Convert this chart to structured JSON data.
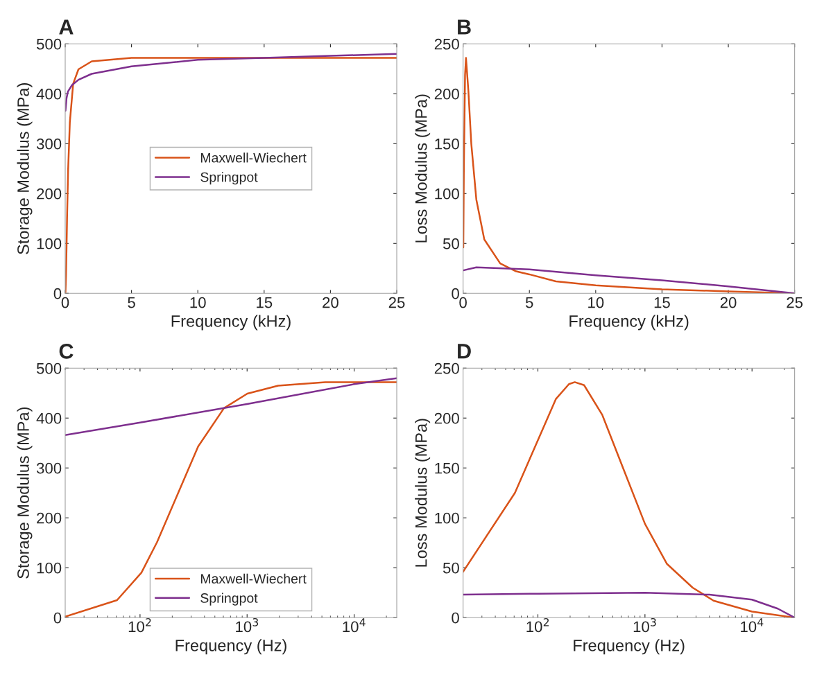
{
  "chart_data": [
    {
      "type": "line",
      "title": "A",
      "xlabel": "Frequency (kHz)",
      "ylabel": "Storage Modulus (MPa)",
      "xlim": [
        0,
        25
      ],
      "xticks": [
        0,
        5,
        10,
        15,
        20,
        25
      ],
      "ylim": [
        0,
        500
      ],
      "yticks": [
        0,
        100,
        200,
        300,
        400,
        500
      ],
      "grid": false,
      "legend": "center",
      "series": [
        {
          "name": "Maxwell-Wiechert",
          "color": "#d95319",
          "x": [
            0.02,
            0.06,
            0.1,
            0.14,
            0.22,
            0.35,
            0.6,
            1,
            2,
            5,
            25
          ],
          "values": [
            2,
            35,
            90,
            151,
            247,
            343,
            420,
            449,
            465,
            472,
            472
          ]
        },
        {
          "name": "Springpot",
          "color": "#7e2f8e",
          "x": [
            0.02,
            0.1,
            0.2,
            0.5,
            1,
            2,
            5,
            10,
            15,
            20,
            25
          ],
          "values": [
            366,
            391,
            404,
            417,
            428,
            440,
            455,
            468,
            472,
            476,
            480
          ]
        }
      ]
    },
    {
      "type": "line",
      "title": "B",
      "xlabel": "Frequency (kHz)",
      "ylabel": "Loss Modulus (MPa)",
      "xlim": [
        0,
        25
      ],
      "xticks": [
        0,
        5,
        10,
        15,
        20,
        25
      ],
      "ylim": [
        0,
        250
      ],
      "yticks": [
        0,
        50,
        100,
        150,
        200,
        250
      ],
      "grid": false,
      "series": [
        {
          "color": "#d95319",
          "x": [
            0.02,
            0.06,
            0.15,
            0.22,
            0.4,
            0.62,
            1,
            1.6,
            2.8,
            4,
            5,
            7,
            10,
            15,
            20,
            25
          ],
          "values": [
            46,
            125,
            219,
            236,
            203,
            150,
            94,
            54,
            30,
            22,
            19,
            12,
            8,
            4,
            2,
            0
          ]
        },
        {
          "color": "#7e2f8e",
          "x": [
            0.02,
            1,
            5,
            10,
            15,
            20,
            25
          ],
          "values": [
            23,
            26,
            24,
            18,
            13,
            7,
            0
          ]
        }
      ]
    },
    {
      "type": "line",
      "title": "C",
      "xlabel": "Frequency (Hz)",
      "ylabel": "Storage Modulus (MPa)",
      "log": "x",
      "xlim": [
        20,
        25000
      ],
      "xticks": [
        {
          "value": 100,
          "label": "10$^{2}$"
        },
        {
          "value": 1000,
          "label": "10$^{3}$"
        },
        {
          "value": 10000,
          "label": "10$^{4}$"
        }
      ],
      "ylim": [
        0,
        500
      ],
      "yticks": [
        0,
        100,
        200,
        300,
        400,
        500
      ],
      "grid": false,
      "legend": "bottom",
      "series": [
        {
          "name": "Maxwell-Wiechert",
          "color": "#d95319",
          "x": [
            20,
            61,
            103,
            144,
            224,
            349,
            609,
            1005,
            1950,
            5370,
            25000
          ],
          "values": [
            2,
            35,
            90,
            151,
            247,
            343,
            420,
            449,
            465,
            472,
            472
          ]
        },
        {
          "name": "Springpot",
          "color": "#7e2f8e",
          "x": [
            20,
            100,
            1000,
            10000,
            25000
          ],
          "values": [
            366,
            391,
            428,
            468,
            480
          ]
        }
      ]
    },
    {
      "type": "line",
      "title": "D",
      "xlabel": "Frequency (Hz)",
      "ylabel": "Loss Modulus (MPa)",
      "log": "x",
      "xlim": [
        20,
        25000
      ],
      "xticks": [
        {
          "value": 100,
          "label": "10$^{2}$"
        },
        {
          "value": 1000,
          "label": "10$^{3}$"
        },
        {
          "value": 10000,
          "label": "10$^{4}$"
        }
      ],
      "ylim": [
        0,
        250
      ],
      "yticks": [
        0,
        50,
        100,
        150,
        200,
        250
      ],
      "grid": false,
      "series": [
        {
          "color": "#d95319",
          "x": [
            20,
            61,
            147,
            195,
            221,
            270,
            400,
            624,
            1000,
            1600,
            2790,
            4370,
            10000,
            25000
          ],
          "values": [
            46,
            125,
            219,
            234,
            236,
            233,
            203,
            150,
            94,
            54,
            30,
            17,
            6,
            0
          ]
        },
        {
          "color": "#7e2f8e",
          "x": [
            20,
            100,
            1000,
            4000,
            10000,
            17400,
            25000
          ],
          "values": [
            23,
            24,
            25,
            23,
            18,
            9,
            0
          ]
        }
      ]
    }
  ]
}
